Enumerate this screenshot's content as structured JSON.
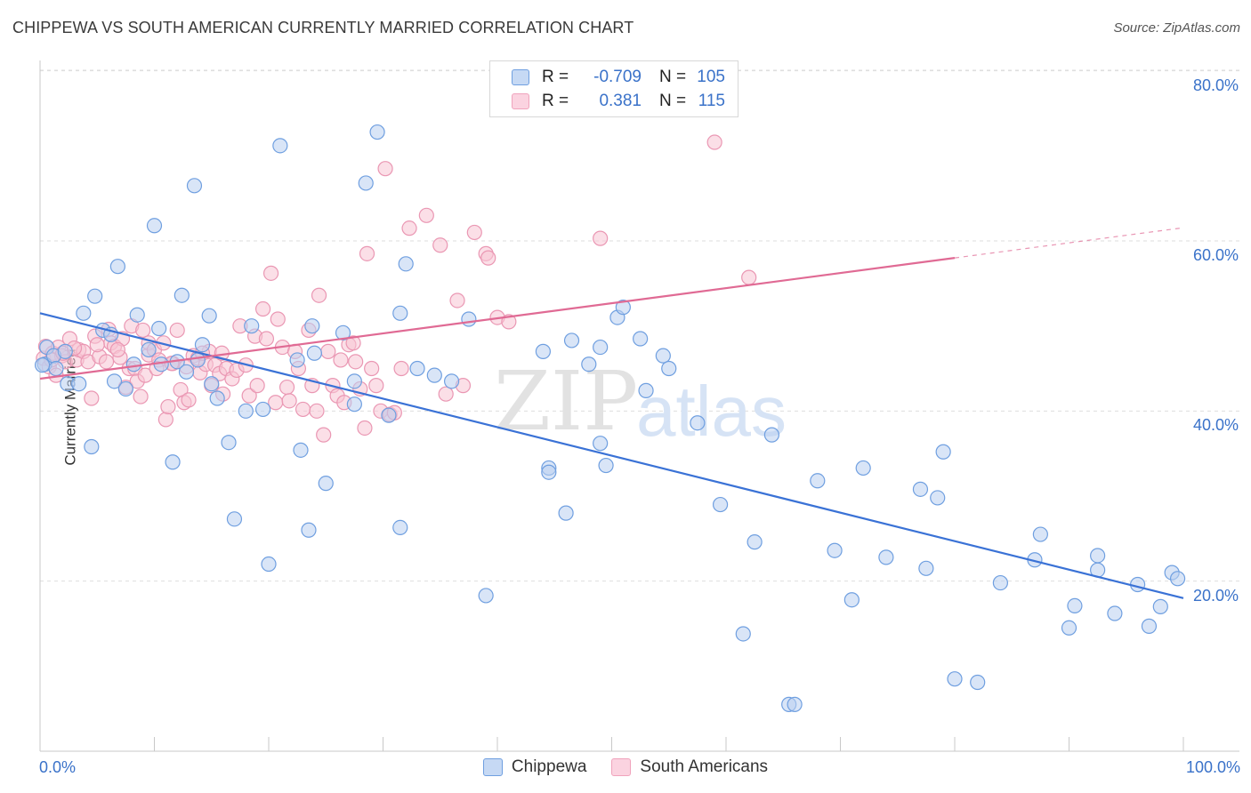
{
  "title": "CHIPPEWA VS SOUTH AMERICAN CURRENTLY MARRIED CORRELATION CHART",
  "source": "Source: ZipAtlas.com",
  "watermark": {
    "zip": "ZIP",
    "atlas": "atlas"
  },
  "legend": {
    "rows": [
      {
        "r_label": "R =",
        "r_value": "-0.709",
        "n_label": "N =",
        "n_value": "105",
        "color": "#6f9fe0"
      },
      {
        "r_label": "R =",
        "r_value": "0.381",
        "n_label": "N =",
        "n_value": "115",
        "color": "#f0a3bc"
      }
    ]
  },
  "bottom_legend": [
    {
      "label": "Chippewa",
      "color": "#6f9fe0"
    },
    {
      "label": "South Americans",
      "color": "#f0a3bc"
    }
  ],
  "axis_labels": {
    "x_min": "0.0%",
    "x_max": "100.0%",
    "y_ticks": [
      "80.0%",
      "60.0%",
      "40.0%",
      "20.0%"
    ]
  },
  "chart_data": {
    "type": "scatter",
    "title": "CHIPPEWA VS SOUTH AMERICAN CURRENTLY MARRIED CORRELATION CHART",
    "xlabel": "",
    "ylabel": "Currently Married",
    "xlim": [
      0,
      100
    ],
    "ylim": [
      0,
      83
    ],
    "y_ticks": [
      20,
      40,
      60,
      80
    ],
    "grid": true,
    "legend_placement": "top-center",
    "series": [
      {
        "name": "Chippewa",
        "color": "#6f9fe0",
        "line_color": "#3a72d6",
        "r": -0.709,
        "n": 105,
        "trend": {
          "x": [
            0,
            100
          ],
          "y": [
            51.5,
            18.0
          ]
        },
        "points": [
          [
            0.4,
            45.5
          ],
          [
            0.6,
            47.5
          ],
          [
            1.2,
            46.5
          ],
          [
            1.4,
            45.0
          ],
          [
            2.2,
            47.0
          ],
          [
            2.4,
            43.2
          ],
          [
            3.4,
            43.2
          ],
          [
            3.8,
            51.5
          ],
          [
            4.5,
            35.8
          ],
          [
            4.8,
            53.5
          ],
          [
            5.5,
            49.5
          ],
          [
            6.2,
            49.0
          ],
          [
            6.5,
            43.5
          ],
          [
            6.8,
            57.0
          ],
          [
            7.5,
            42.6
          ],
          [
            8.2,
            45.5
          ],
          [
            8.5,
            51.3
          ],
          [
            9.5,
            47.2
          ],
          [
            10.0,
            61.8
          ],
          [
            10.4,
            49.7
          ],
          [
            10.6,
            45.5
          ],
          [
            11.6,
            34.0
          ],
          [
            12.0,
            45.8
          ],
          [
            12.4,
            53.6
          ],
          [
            12.8,
            44.6
          ],
          [
            13.5,
            66.5
          ],
          [
            13.8,
            46.0
          ],
          [
            14.2,
            47.8
          ],
          [
            14.8,
            51.2
          ],
          [
            15.0,
            43.2
          ],
          [
            15.5,
            41.5
          ],
          [
            16.5,
            36.3
          ],
          [
            17.0,
            27.3
          ],
          [
            18.0,
            40.0
          ],
          [
            18.5,
            50.0
          ],
          [
            19.5,
            40.2
          ],
          [
            20.0,
            22.0
          ],
          [
            21.0,
            71.2
          ],
          [
            22.5,
            46.0
          ],
          [
            22.8,
            35.4
          ],
          [
            23.5,
            26.0
          ],
          [
            23.8,
            50.0
          ],
          [
            24.0,
            46.8
          ],
          [
            25.0,
            31.5
          ],
          [
            26.5,
            49.2
          ],
          [
            27.5,
            43.5
          ],
          [
            27.5,
            40.8
          ],
          [
            28.5,
            66.8
          ],
          [
            29.5,
            72.8
          ],
          [
            30.5,
            39.5
          ],
          [
            31.5,
            26.3
          ],
          [
            31.5,
            51.5
          ],
          [
            32.0,
            57.3
          ],
          [
            33.0,
            45.0
          ],
          [
            34.5,
            44.2
          ],
          [
            36.0,
            43.5
          ],
          [
            37.5,
            50.8
          ],
          [
            39.0,
            18.3
          ],
          [
            44.0,
            47.0
          ],
          [
            44.5,
            33.3
          ],
          [
            44.5,
            32.8
          ],
          [
            46.0,
            28.0
          ],
          [
            46.5,
            48.3
          ],
          [
            48.0,
            45.5
          ],
          [
            49.0,
            36.2
          ],
          [
            49.5,
            33.6
          ],
          [
            49.0,
            47.5
          ],
          [
            50.5,
            51.0
          ],
          [
            51.0,
            52.2
          ],
          [
            52.5,
            48.5
          ],
          [
            53.0,
            42.4
          ],
          [
            54.5,
            46.5
          ],
          [
            55.0,
            45.0
          ],
          [
            57.5,
            38.6
          ],
          [
            59.5,
            29.0
          ],
          [
            61.5,
            13.8
          ],
          [
            62.5,
            24.6
          ],
          [
            64.0,
            37.2
          ],
          [
            65.5,
            5.5
          ],
          [
            66.0,
            5.5
          ],
          [
            68.0,
            31.8
          ],
          [
            69.5,
            23.6
          ],
          [
            71.0,
            17.8
          ],
          [
            72.0,
            33.3
          ],
          [
            74.0,
            22.8
          ],
          [
            77.0,
            30.8
          ],
          [
            77.5,
            21.5
          ],
          [
            78.5,
            29.8
          ],
          [
            79.0,
            35.2
          ],
          [
            80.0,
            8.5
          ],
          [
            82.0,
            8.1
          ],
          [
            84.0,
            19.8
          ],
          [
            87.0,
            22.5
          ],
          [
            87.5,
            25.5
          ],
          [
            90.0,
            14.5
          ],
          [
            90.5,
            17.1
          ],
          [
            92.5,
            23.0
          ],
          [
            92.5,
            21.3
          ],
          [
            94.0,
            16.2
          ],
          [
            96.0,
            19.6
          ],
          [
            97.0,
            14.7
          ],
          [
            98.0,
            17.0
          ],
          [
            99.0,
            21.0
          ],
          [
            99.5,
            20.3
          ],
          [
            0.2,
            45.4
          ]
        ]
      },
      {
        "name": "South Americans",
        "color": "#f0a3bc",
        "line_color": "#e06a94",
        "r": 0.381,
        "n": 115,
        "trend": {
          "x": [
            0,
            80
          ],
          "y": [
            43.8,
            58.0
          ]
        },
        "points": [
          [
            0.3,
            46.2
          ],
          [
            0.5,
            47.6
          ],
          [
            0.8,
            45.2
          ],
          [
            1.1,
            46.8
          ],
          [
            1.4,
            44.2
          ],
          [
            1.6,
            47.5
          ],
          [
            1.9,
            46.5
          ],
          [
            2.2,
            45.8
          ],
          [
            2.6,
            48.5
          ],
          [
            3.2,
            46.0
          ],
          [
            3.4,
            47.2
          ],
          [
            3.8,
            47.0
          ],
          [
            4.2,
            45.8
          ],
          [
            4.5,
            41.5
          ],
          [
            4.8,
            48.8
          ],
          [
            5.2,
            46.4
          ],
          [
            5.8,
            45.8
          ],
          [
            6.0,
            49.6
          ],
          [
            6.2,
            48.0
          ],
          [
            6.5,
            47.6
          ],
          [
            7.0,
            46.3
          ],
          [
            7.2,
            48.5
          ],
          [
            7.5,
            42.8
          ],
          [
            7.8,
            45.0
          ],
          [
            8.0,
            50.0
          ],
          [
            8.3,
            45.0
          ],
          [
            8.5,
            43.5
          ],
          [
            8.8,
            41.7
          ],
          [
            9.0,
            49.5
          ],
          [
            9.5,
            46.6
          ],
          [
            9.5,
            48.0
          ],
          [
            10.0,
            47.2
          ],
          [
            10.4,
            46.0
          ],
          [
            10.8,
            48.0
          ],
          [
            11.0,
            39.0
          ],
          [
            11.2,
            40.5
          ],
          [
            11.6,
            45.6
          ],
          [
            12.0,
            49.5
          ],
          [
            12.3,
            42.5
          ],
          [
            12.6,
            41.0
          ],
          [
            13.0,
            41.3
          ],
          [
            13.4,
            46.5
          ],
          [
            13.8,
            46.2
          ],
          [
            14.0,
            44.5
          ],
          [
            14.5,
            45.5
          ],
          [
            14.8,
            47.0
          ],
          [
            15.0,
            43.0
          ],
          [
            15.3,
            45.4
          ],
          [
            15.7,
            44.4
          ],
          [
            16.0,
            42.0
          ],
          [
            16.3,
            45.0
          ],
          [
            16.8,
            43.8
          ],
          [
            17.2,
            44.8
          ],
          [
            17.5,
            50.0
          ],
          [
            18.0,
            45.4
          ],
          [
            18.3,
            41.8
          ],
          [
            18.8,
            48.8
          ],
          [
            19.0,
            43.0
          ],
          [
            19.5,
            52.0
          ],
          [
            19.8,
            48.5
          ],
          [
            20.2,
            56.2
          ],
          [
            20.6,
            41.0
          ],
          [
            20.8,
            50.8
          ],
          [
            21.2,
            47.5
          ],
          [
            21.6,
            42.8
          ],
          [
            21.8,
            41.2
          ],
          [
            22.3,
            47.0
          ],
          [
            22.6,
            45.0
          ],
          [
            23.0,
            40.2
          ],
          [
            23.5,
            49.5
          ],
          [
            23.8,
            43.0
          ],
          [
            24.2,
            40.0
          ],
          [
            24.4,
            53.6
          ],
          [
            24.8,
            37.2
          ],
          [
            25.2,
            47.0
          ],
          [
            25.6,
            43.0
          ],
          [
            26.0,
            41.8
          ],
          [
            26.3,
            46.0
          ],
          [
            26.6,
            41.0
          ],
          [
            27.0,
            47.8
          ],
          [
            27.4,
            48.0
          ],
          [
            27.6,
            45.8
          ],
          [
            28.0,
            42.6
          ],
          [
            28.4,
            38.0
          ],
          [
            28.6,
            58.5
          ],
          [
            29.0,
            45.0
          ],
          [
            29.4,
            43.0
          ],
          [
            29.8,
            40.0
          ],
          [
            30.2,
            68.5
          ],
          [
            30.6,
            39.6
          ],
          [
            31.0,
            39.8
          ],
          [
            31.6,
            45.0
          ],
          [
            32.3,
            61.5
          ],
          [
            33.8,
            63.0
          ],
          [
            35.0,
            59.5
          ],
          [
            35.5,
            42.0
          ],
          [
            36.5,
            53.0
          ],
          [
            37.0,
            43.0
          ],
          [
            38.0,
            61.0
          ],
          [
            39.0,
            58.5
          ],
          [
            39.2,
            58.0
          ],
          [
            40.0,
            51.0
          ],
          [
            41.0,
            50.5
          ],
          [
            49.0,
            60.3
          ],
          [
            59.0,
            71.6
          ],
          [
            62.0,
            55.7
          ],
          [
            1.0,
            46.0
          ],
          [
            2.0,
            46.8
          ],
          [
            3.0,
            47.4
          ],
          [
            5.0,
            47.8
          ],
          [
            6.8,
            47.2
          ],
          [
            9.2,
            44.2
          ],
          [
            10.2,
            45.0
          ],
          [
            11.5,
            45.6
          ],
          [
            12.8,
            45.2
          ],
          [
            14.2,
            46.8
          ],
          [
            15.9,
            46.8
          ]
        ]
      }
    ]
  }
}
